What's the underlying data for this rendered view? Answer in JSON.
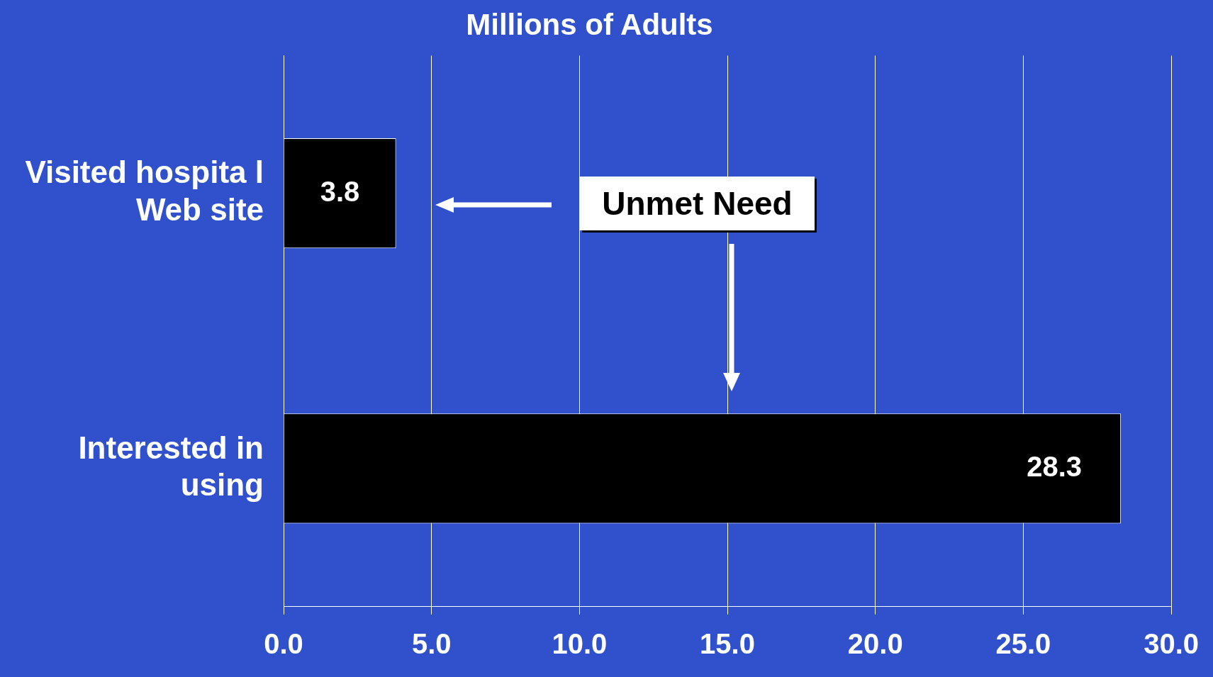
{
  "chart_data": {
    "type": "bar",
    "orientation": "horizontal",
    "title": "Millions of Adults",
    "categories": [
      "Visited hospita l Web site",
      "Interested in using"
    ],
    "values": [
      3.8,
      28.3
    ],
    "color": "#000000",
    "data_labels": true,
    "xlim": [
      0,
      30
    ],
    "xticks": [
      {
        "value": 0,
        "label": "0.0"
      },
      {
        "value": 5,
        "label": "5.0"
      },
      {
        "value": 10,
        "label": "10.0"
      },
      {
        "value": 15,
        "label": "15.0"
      },
      {
        "value": 20,
        "label": "20.0"
      },
      {
        "value": 25,
        "label": "25.0"
      },
      {
        "value": 30,
        "label": "30.0"
      }
    ],
    "grid": "x",
    "legend": false,
    "annotations": [
      "Unmet Need"
    ]
  }
}
